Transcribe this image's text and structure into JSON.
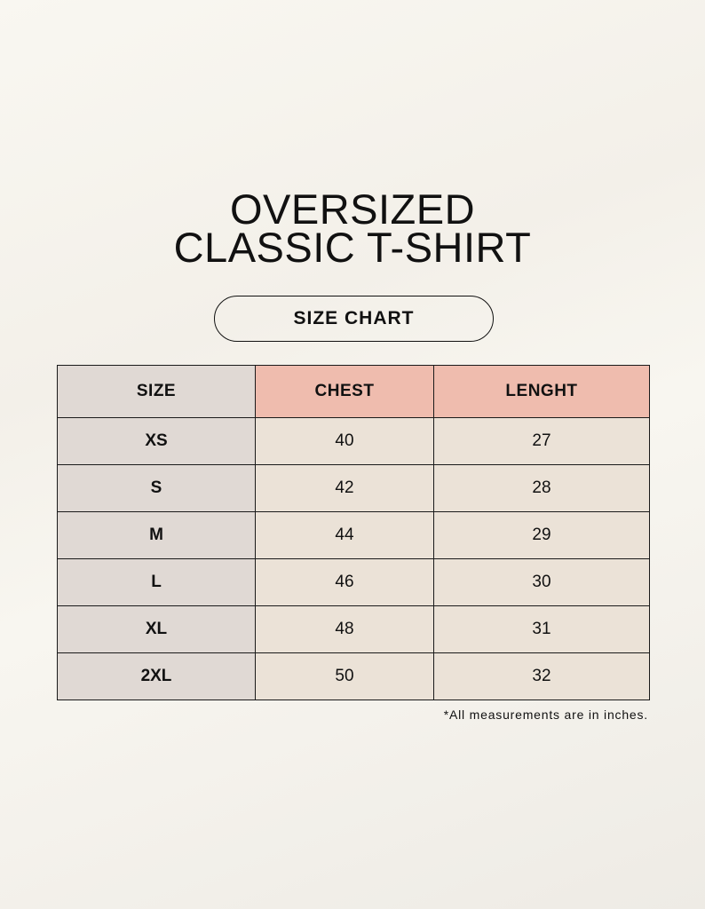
{
  "title": {
    "line1": "OVERSIZED",
    "line2": "CLASSIC T-SHIRT"
  },
  "subtitle": "SIZE CHART",
  "table": {
    "headers": [
      "SIZE",
      "CHEST",
      "LENGHT"
    ],
    "rows": [
      [
        "XS",
        "40",
        "27"
      ],
      [
        "S",
        "42",
        "28"
      ],
      [
        "M",
        "44",
        "29"
      ],
      [
        "L",
        "46",
        "30"
      ],
      [
        "XL",
        "48",
        "31"
      ],
      [
        "2XL",
        "50",
        "32"
      ]
    ]
  },
  "note": "*All measurements are in inches.",
  "colors": {
    "background": "#f8f6f0",
    "size_column": "#e0d9d4",
    "header_accent": "#efbcae",
    "cell": "#ebe2d7"
  }
}
